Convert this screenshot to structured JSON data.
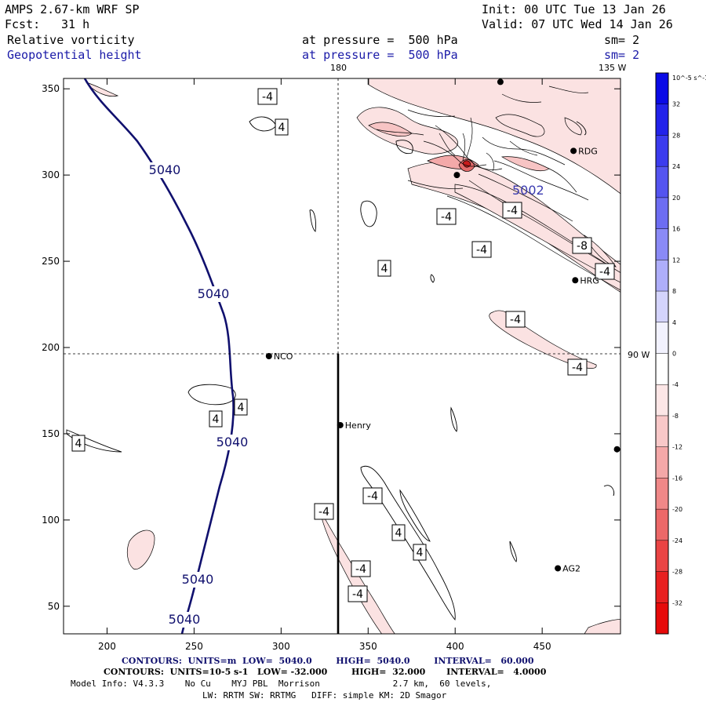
{
  "header": {
    "model": "AMPS 2.67-km WRF SP",
    "init": "Init: 00 UTC Tue 13 Jan 26",
    "fcst_label": "Fcst:",
    "fcst_value": "31 h",
    "valid": "Valid: 07 UTC Wed 14 Jan 26",
    "field1_name": "Relative vorticity",
    "field1_level": "at pressure =  500 hPa",
    "field1_sm": "sm= 2",
    "field2_name": "Geopotential height",
    "field2_level": "at pressure =  500 hPa",
    "field2_sm": "sm= 2"
  },
  "chart_data": {
    "type": "contour",
    "x_ticks": [
      200,
      250,
      300,
      350,
      400,
      450
    ],
    "y_ticks": [
      50,
      100,
      150,
      200,
      250,
      300,
      350
    ],
    "xlim": [
      175,
      495
    ],
    "ylim": [
      34,
      356
    ],
    "geo_labels": {
      "lon_180": "180",
      "lon_135w": "135 W",
      "lat_90w": "90 W"
    },
    "height_contour": {
      "name": "Geopotential height",
      "units": "m",
      "value": 5040,
      "label": "5040"
    },
    "height_labels": [
      "5040",
      "5040",
      "5040",
      "5040",
      "5040"
    ],
    "high_value_label": "5002",
    "vorticity_labels": [
      "-4",
      "4",
      "-4",
      "-4",
      "-4",
      "-8",
      "-4",
      "4",
      "-4",
      "-4",
      "4",
      "4",
      "4",
      "-4",
      "4",
      "4",
      "-4",
      "-4"
    ],
    "stations": [
      {
        "name": "RDG",
        "x": 468,
        "y": 314
      },
      {
        "name": "HRG",
        "x": 469,
        "y": 239
      },
      {
        "name": "NCO",
        "x": 293,
        "y": 195
      },
      {
        "name": "Henry",
        "x": 334,
        "y": 155
      },
      {
        "name": "AG2",
        "x": 459,
        "y": 72
      },
      {
        "name": "",
        "x": 401,
        "y": 300
      },
      {
        "name": "",
        "x": 426,
        "y": 354
      },
      {
        "name": "",
        "x": 493,
        "y": 141
      }
    ],
    "colorbar": {
      "units": "10^-5 s^-1",
      "labels": [
        "32",
        "28",
        "24",
        "20",
        "16",
        "12",
        "8",
        "4",
        "0",
        "-4",
        "-8",
        "-12",
        "-16",
        "-20",
        "-24",
        "-28",
        "-32"
      ],
      "colors": [
        "#0a0ae6",
        "#2222ea",
        "#3b3bee",
        "#5454f0",
        "#6d6df2",
        "#8a8af6",
        "#aeaefa",
        "#d4d4fc",
        "#f2f2fe",
        "#ffffff",
        "#fce6e6",
        "#f8c8c8",
        "#f4a8a8",
        "#f08888",
        "#ec6868",
        "#ea4444",
        "#e82020",
        "#e60a0a"
      ]
    }
  },
  "footer": {
    "line1": "CONTOURS:  UNITS=m  LOW=  5040.0        HIGH=  5040.0        INTERVAL=   60.000",
    "line2": "CONTOURS:  UNITS=10-5 s-1   LOW= -32.000        HIGH=  32.000       INTERVAL=   4.0000",
    "line3": "Model Info: V4.3.3    No Cu    MYJ PBL  Morrison              2.7 km,  60 levels,",
    "line4": "LW: RRTM SW: RRTMG   DIFF: simple KM: 2D Smagor"
  }
}
